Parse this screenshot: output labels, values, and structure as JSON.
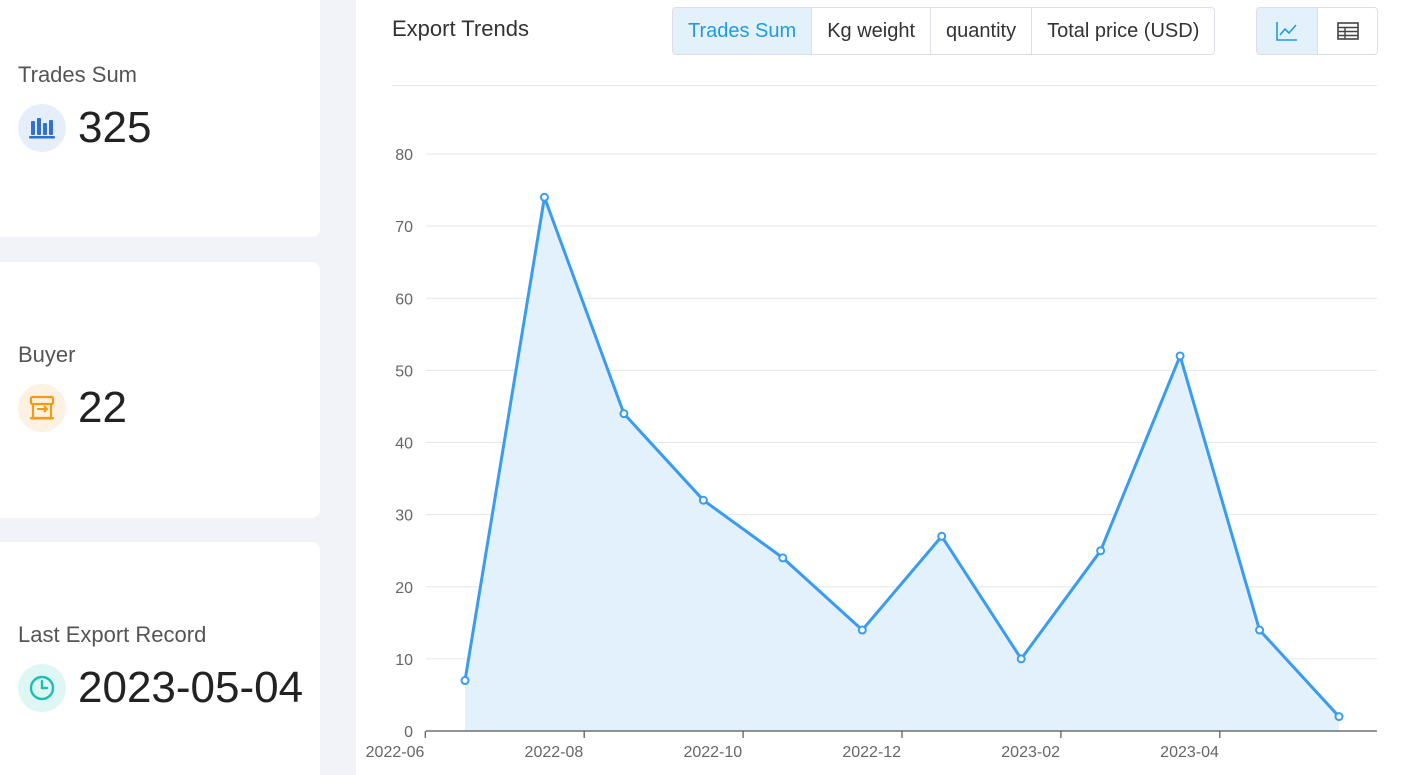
{
  "stats": {
    "trades": {
      "label": "Trades Sum",
      "value": "325",
      "icon": "bar-chart-icon",
      "color": "#2f6fd6"
    },
    "buyer": {
      "label": "Buyer",
      "value": "22",
      "icon": "store-icon",
      "color": "#f39c12"
    },
    "last": {
      "label": "Last Export Record",
      "value": "2023-05-04",
      "icon": "clock-icon",
      "color": "#1cbfae"
    }
  },
  "panel": {
    "title": "Export Trends",
    "metric_tabs": [
      "Trades Sum",
      "Kg weight",
      "quantity",
      "Total price (USD)"
    ],
    "active_metric": "Trades Sum",
    "view_buttons": [
      {
        "name": "line-chart-view-icon",
        "active": true
      },
      {
        "name": "table-view-icon",
        "active": false
      }
    ]
  },
  "chart_data": {
    "type": "area",
    "x": [
      "2022-06",
      "2022-07",
      "2022-08",
      "2022-09",
      "2022-10",
      "2022-11",
      "2022-12",
      "2023-01",
      "2023-02",
      "2023-03",
      "2023-04",
      "2023-05"
    ],
    "values": [
      7,
      74,
      44,
      32,
      24,
      14,
      27,
      10,
      25,
      52,
      14,
      2
    ],
    "x_ticks": [
      "2022-06",
      "2022-08",
      "2022-10",
      "2022-12",
      "2023-02",
      "2023-04"
    ],
    "y_ticks": [
      0,
      10,
      20,
      30,
      40,
      50,
      60,
      70,
      80
    ],
    "ylim": [
      0,
      80
    ],
    "grid": true,
    "line_color": "#3a9cf0",
    "fill_color": "#e3f1fc"
  }
}
